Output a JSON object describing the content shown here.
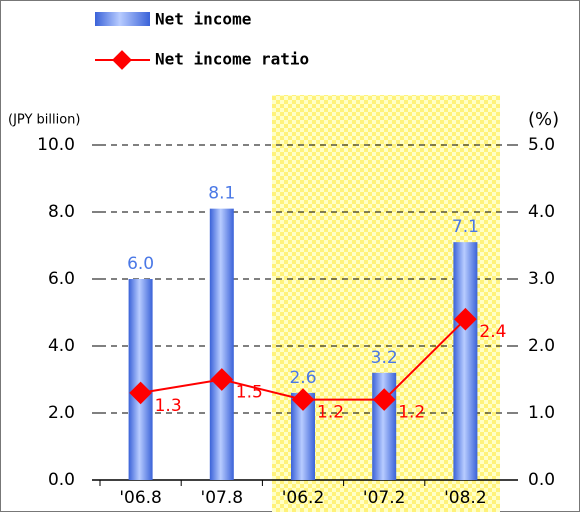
{
  "chart_data": {
    "type": "bar",
    "categories": [
      "'06.8",
      "'07.8",
      "'06.2",
      "'07.2",
      "'08.2"
    ],
    "series": [
      {
        "name": "Net income",
        "type": "bar",
        "color": "#4a78e6",
        "values": [
          6.0,
          8.1,
          2.6,
          3.2,
          7.1
        ],
        "value_labels": [
          "6.0",
          "8.1",
          "2.6",
          "3.2",
          "7.1"
        ]
      },
      {
        "name": "Net income ratio",
        "type": "line",
        "axis": "y2",
        "color": "#ff0000",
        "values": [
          1.3,
          1.5,
          1.2,
          1.2,
          2.4
        ]
      }
    ],
    "ylabel": "(JPY billion)",
    "y2label": "(%)",
    "ylim": [
      0,
      10
    ],
    "yticks": [
      {
        "value": 0,
        "label": "0.0"
      },
      {
        "value": 2,
        "label": "2.0"
      },
      {
        "value": 4,
        "label": "4.0"
      },
      {
        "value": 6,
        "label": "6.0"
      },
      {
        "value": 8,
        "label": "8.0"
      },
      {
        "value": 10,
        "label": "10.0"
      }
    ],
    "y2lim": [
      0,
      5
    ],
    "y2ticks": [
      {
        "value": 0,
        "label": "0.0"
      },
      {
        "value": 1,
        "label": "1.0"
      },
      {
        "value": 2,
        "label": "2.0"
      },
      {
        "value": 3,
        "label": "3.0"
      },
      {
        "value": 4,
        "label": "4.0"
      },
      {
        "value": 5,
        "label": "5.0"
      }
    ],
    "grid": true
  }
}
